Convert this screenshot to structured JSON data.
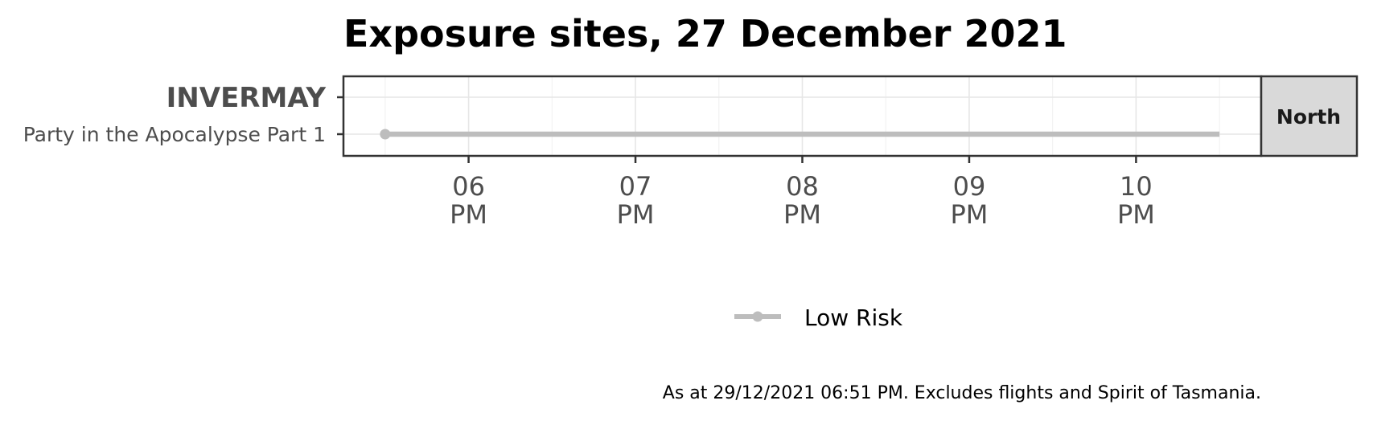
{
  "chart_data": {
    "type": "timeline",
    "title": "Exposure sites, 27 December 2021",
    "x_axis": {
      "range_hours": [
        17.25,
        22.75
      ],
      "ticks": [
        {
          "hour": 18,
          "line1": "06",
          "line2": "PM"
        },
        {
          "hour": 19,
          "line1": "07",
          "line2": "PM"
        },
        {
          "hour": 20,
          "line1": "08",
          "line2": "PM"
        },
        {
          "hour": 21,
          "line1": "09",
          "line2": "PM"
        },
        {
          "hour": 22,
          "line1": "10",
          "line2": "PM"
        }
      ]
    },
    "rows": [
      {
        "label": "INVERMAY",
        "kind": "group"
      },
      {
        "label": "Party in the Apocalypse Part 1",
        "kind": "site"
      }
    ],
    "segments": [
      {
        "row": 1,
        "start_hour": 17.5,
        "end_hour": 22.5,
        "risk": "Low Risk"
      }
    ],
    "facet_label": "North",
    "legend": [
      {
        "label": "Low Risk",
        "color": "#bdbdbd"
      }
    ],
    "caption": "As at 29/12/2021 06:51 PM. Excludes flights and Spirit of Tasmania."
  }
}
